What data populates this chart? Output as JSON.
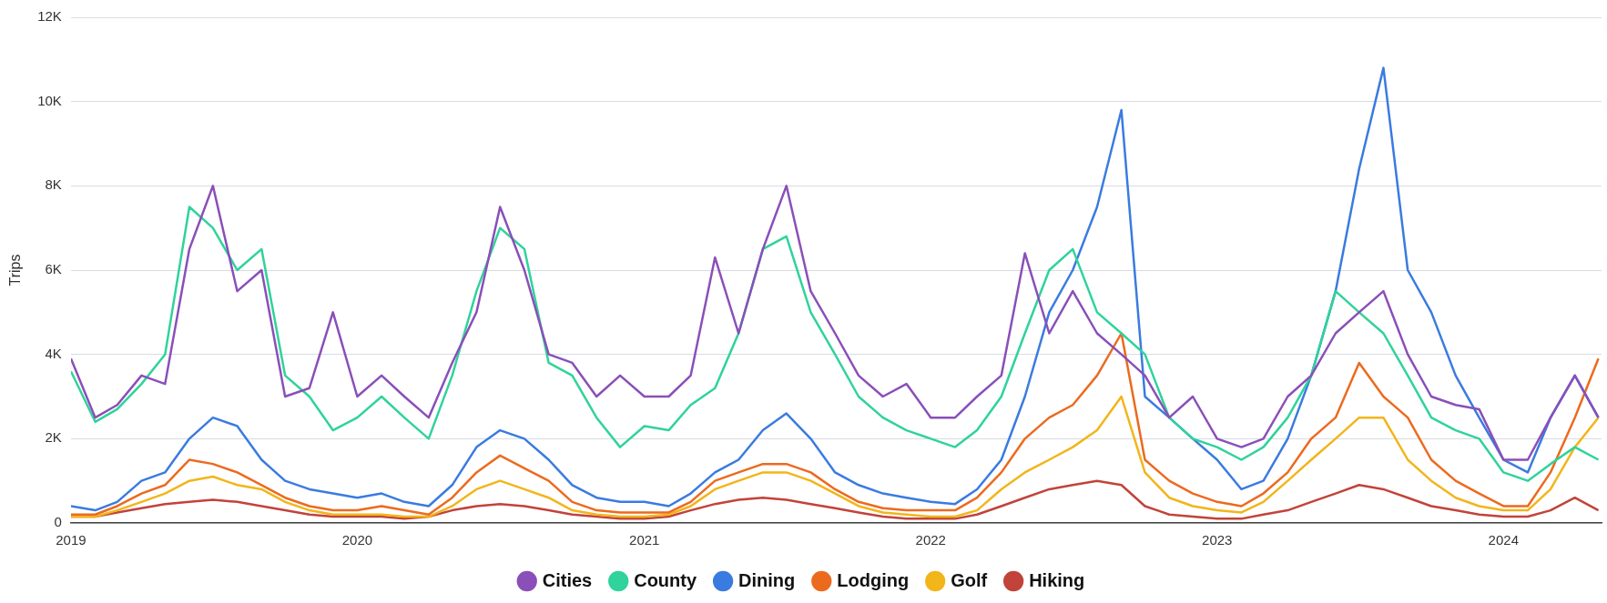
{
  "chart_data": {
    "type": "line",
    "ylabel": "Trips",
    "legend": "bottom",
    "grid": "y",
    "marker": "none",
    "line_style": "solid",
    "xlim": [
      "2019-01-01",
      "2024-05-05"
    ],
    "xticks": [
      "2019",
      "2020",
      "2021",
      "2022",
      "2023",
      "2024"
    ],
    "ylim": [
      0,
      12000
    ],
    "yticks": [
      {
        "value": 0,
        "label": "0"
      },
      {
        "value": 2000,
        "label": "2K"
      },
      {
        "value": 4000,
        "label": "4K"
      },
      {
        "value": 6000,
        "label": "6K"
      },
      {
        "value": 8000,
        "label": "8K"
      },
      {
        "value": 10000,
        "label": "10K"
      },
      {
        "value": 12000,
        "label": "12K"
      }
    ],
    "x": [
      "2019-01",
      "2019-02",
      "2019-03",
      "2019-04",
      "2019-05",
      "2019-06",
      "2019-07",
      "2019-08",
      "2019-09",
      "2019-10",
      "2019-11",
      "2019-12",
      "2020-01",
      "2020-02",
      "2020-03",
      "2020-04",
      "2020-05",
      "2020-06",
      "2020-07",
      "2020-08",
      "2020-09",
      "2020-10",
      "2020-11",
      "2020-12",
      "2021-01",
      "2021-02",
      "2021-03",
      "2021-04",
      "2021-05",
      "2021-06",
      "2021-07",
      "2021-08",
      "2021-09",
      "2021-10",
      "2021-11",
      "2021-12",
      "2022-01",
      "2022-02",
      "2022-03",
      "2022-04",
      "2022-05",
      "2022-06",
      "2022-07",
      "2022-08",
      "2022-09",
      "2022-10",
      "2022-11",
      "2022-12",
      "2023-01",
      "2023-02",
      "2023-03",
      "2023-04",
      "2023-05",
      "2023-06",
      "2023-07",
      "2023-08",
      "2023-09",
      "2023-10",
      "2023-11",
      "2023-12",
      "2024-01",
      "2024-02",
      "2024-03",
      "2024-04",
      "2024-05"
    ],
    "series": [
      {
        "name": "Cities",
        "color": "#8a4fb8",
        "values": [
          3900,
          2500,
          2800,
          3500,
          3300,
          6500,
          8000,
          5500,
          6000,
          3000,
          3200,
          5000,
          3000,
          3500,
          3000,
          2500,
          3800,
          5000,
          7500,
          6000,
          4000,
          3800,
          3000,
          3500,
          3000,
          3000,
          3500,
          6300,
          4500,
          6500,
          8000,
          5500,
          4500,
          3500,
          3000,
          3300,
          2500,
          2500,
          3000,
          3500,
          6400,
          4500,
          5500,
          4500,
          4000,
          3500,
          2500,
          3000,
          2000,
          1800,
          2000,
          3000,
          3500,
          4500,
          5000,
          5500,
          4000,
          3000,
          2800,
          2700,
          1500,
          1500,
          2500,
          3500,
          2500
        ]
      },
      {
        "name": "County",
        "color": "#2fd39b",
        "values": [
          3600,
          2400,
          2700,
          3300,
          4000,
          7500,
          7000,
          6000,
          6500,
          3500,
          3000,
          2200,
          2500,
          3000,
          2500,
          2000,
          3500,
          5500,
          7000,
          6500,
          3800,
          3500,
          2500,
          1800,
          2300,
          2200,
          2800,
          3200,
          4500,
          6500,
          6800,
          5000,
          4000,
          3000,
          2500,
          2200,
          2000,
          1800,
          2200,
          3000,
          4500,
          6000,
          6500,
          5000,
          4500,
          4000,
          2500,
          2000,
          1800,
          1500,
          1800,
          2500,
          3500,
          5500,
          5000,
          4500,
          3500,
          2500,
          2200,
          2000,
          1200,
          1000,
          1400,
          1800,
          1500
        ]
      },
      {
        "name": "Dining",
        "color": "#3a7be0",
        "values": [
          400,
          300,
          500,
          1000,
          1200,
          2000,
          2500,
          2300,
          1500,
          1000,
          800,
          700,
          600,
          700,
          500,
          400,
          900,
          1800,
          2200,
          2000,
          1500,
          900,
          600,
          500,
          500,
          400,
          700,
          1200,
          1500,
          2200,
          2600,
          2000,
          1200,
          900,
          700,
          600,
          500,
          450,
          800,
          1500,
          3000,
          5000,
          6000,
          7500,
          9800,
          3000,
          2500,
          2000,
          1500,
          800,
          1000,
          2000,
          3500,
          5500,
          8400,
          10800,
          6000,
          5000,
          3500,
          2500,
          1500,
          1200,
          2500,
          3500,
          2500
        ]
      },
      {
        "name": "Lodging",
        "color": "#ec6a1e",
        "values": [
          200,
          200,
          400,
          700,
          900,
          1500,
          1400,
          1200,
          900,
          600,
          400,
          300,
          300,
          400,
          300,
          200,
          600,
          1200,
          1600,
          1300,
          1000,
          500,
          300,
          250,
          250,
          250,
          500,
          1000,
          1200,
          1400,
          1400,
          1200,
          800,
          500,
          350,
          300,
          300,
          300,
          600,
          1200,
          2000,
          2500,
          2800,
          3500,
          4500,
          1500,
          1000,
          700,
          500,
          400,
          700,
          1200,
          2000,
          2500,
          3800,
          3000,
          2500,
          1500,
          1000,
          700,
          400,
          400,
          1200,
          2500,
          3900
        ]
      },
      {
        "name": "Golf",
        "color": "#f2b51a",
        "values": [
          150,
          150,
          300,
          500,
          700,
          1000,
          1100,
          900,
          800,
          500,
          300,
          200,
          200,
          200,
          150,
          150,
          400,
          800,
          1000,
          800,
          600,
          300,
          200,
          150,
          150,
          200,
          400,
          800,
          1000,
          1200,
          1200,
          1000,
          700,
          400,
          250,
          200,
          150,
          150,
          300,
          800,
          1200,
          1500,
          1800,
          2200,
          3000,
          1200,
          600,
          400,
          300,
          250,
          500,
          1000,
          1500,
          2000,
          2500,
          2500,
          1500,
          1000,
          600,
          400,
          300,
          300,
          800,
          1800,
          2500
        ]
      },
      {
        "name": "Hiking",
        "color": "#c2433a",
        "values": [
          150,
          150,
          250,
          350,
          450,
          500,
          550,
          500,
          400,
          300,
          200,
          150,
          150,
          150,
          100,
          150,
          300,
          400,
          450,
          400,
          300,
          200,
          150,
          100,
          100,
          150,
          300,
          450,
          550,
          600,
          550,
          450,
          350,
          250,
          150,
          100,
          100,
          100,
          200,
          400,
          600,
          800,
          900,
          1000,
          900,
          400,
          200,
          150,
          100,
          100,
          200,
          300,
          500,
          700,
          900,
          800,
          600,
          400,
          300,
          200,
          150,
          150,
          300,
          600,
          300
        ]
      }
    ]
  }
}
